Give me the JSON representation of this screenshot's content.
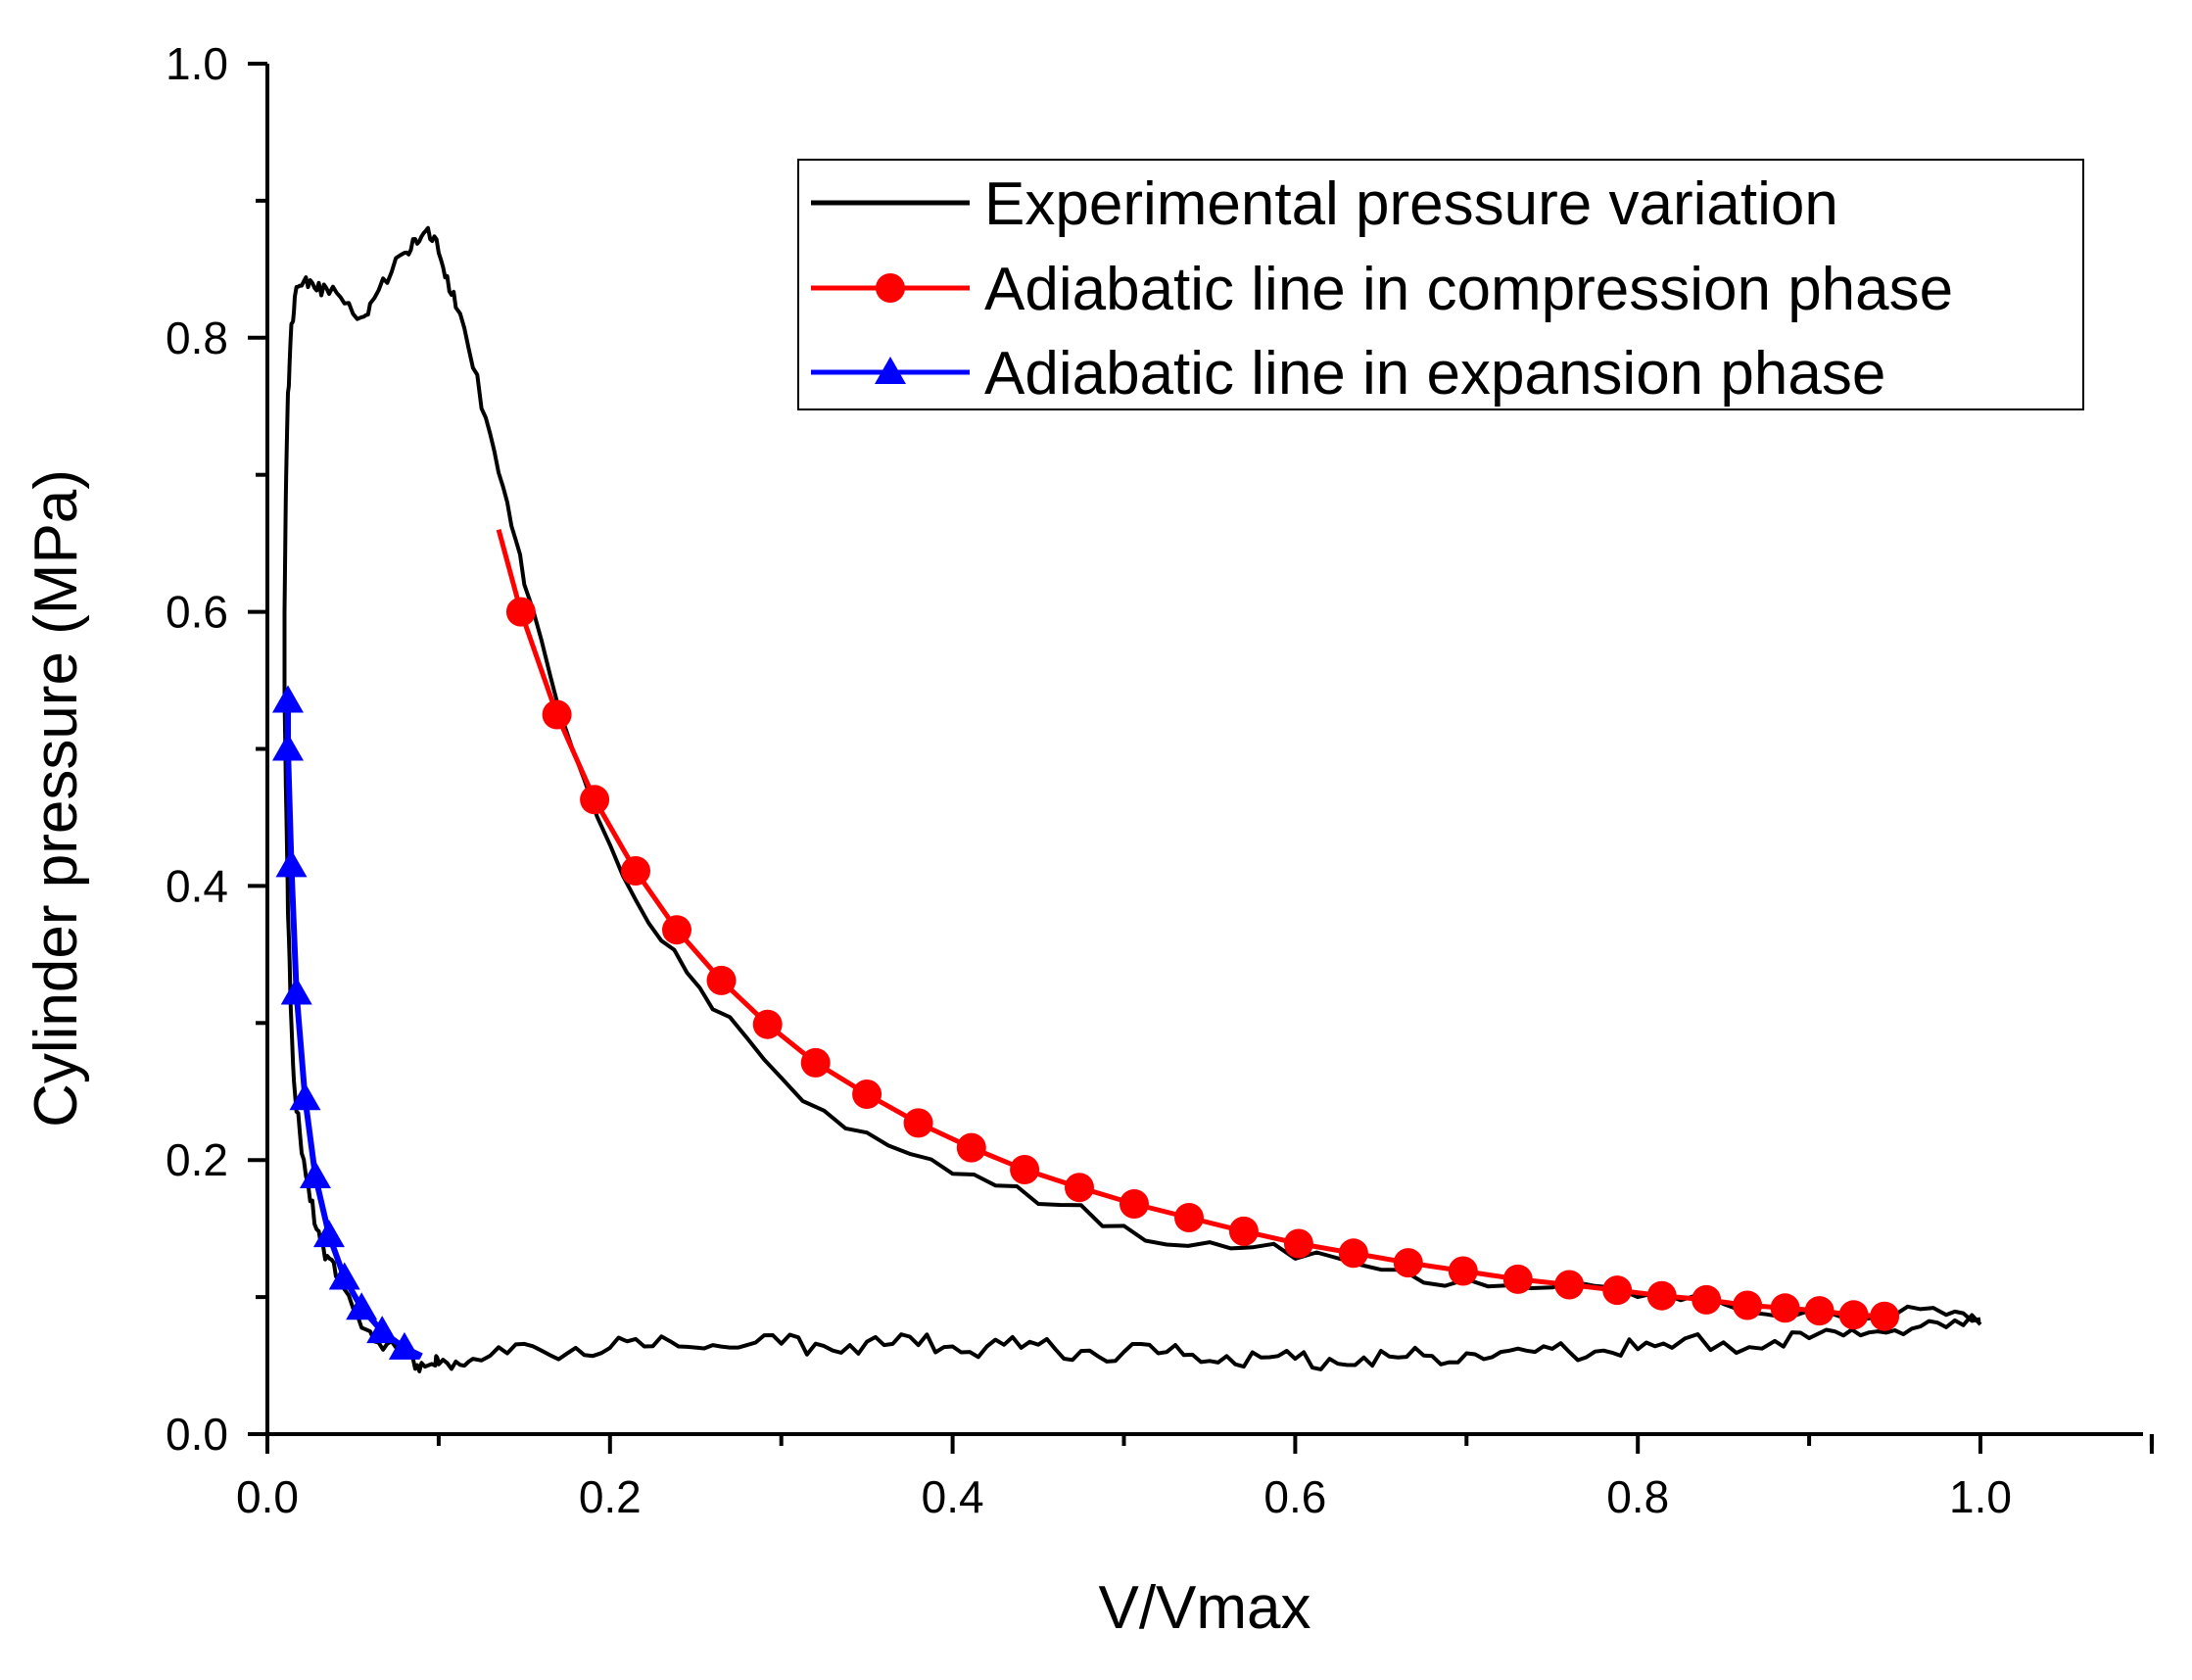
{
  "chart_data": {
    "type": "line",
    "title": "",
    "xlabel": "V/Vmax",
    "ylabel": "Cylinder pressure (MPa)",
    "xlim": [
      0.0,
      1.1
    ],
    "ylim": [
      0.0,
      1.0
    ],
    "xticks": [
      0.0,
      0.2,
      0.4,
      0.6,
      0.8,
      1.0
    ],
    "xtick_labels": [
      "0.0",
      "0.2",
      "0.4",
      "0.6",
      "0.8",
      "1.0"
    ],
    "yticks": [
      0.0,
      0.2,
      0.4,
      0.6,
      0.8,
      1.0
    ],
    "ytick_labels": [
      "0.0",
      "0.2",
      "0.4",
      "0.6",
      "0.8",
      "1.0"
    ],
    "grid": false,
    "legend_position": "top-right",
    "series": [
      {
        "name": "Experimental pressure variation",
        "color": "#000000",
        "marker": "none",
        "x": [
          1.0,
          0.98,
          0.96,
          0.94,
          0.92,
          0.9,
          0.88,
          0.85,
          0.82,
          0.8,
          0.78,
          0.76,
          0.74,
          0.72,
          0.7,
          0.68,
          0.66,
          0.64,
          0.62,
          0.6,
          0.58,
          0.56,
          0.54,
          0.52,
          0.5,
          0.48,
          0.46,
          0.44,
          0.42,
          0.4,
          0.38,
          0.36,
          0.34,
          0.32,
          0.3,
          0.28,
          0.26,
          0.24,
          0.22,
          0.2,
          0.18,
          0.16,
          0.14,
          0.12,
          0.11,
          0.1,
          0.098,
          0.09,
          0.085,
          0.08,
          0.07,
          0.06,
          0.05,
          0.04,
          0.035,
          0.03,
          0.025,
          0.02,
          0.016,
          0.014,
          0.012,
          0.011,
          0.01,
          0.01,
          0.011,
          0.012,
          0.014,
          0.016,
          0.02,
          0.025,
          0.03,
          0.036,
          0.045,
          0.055,
          0.06,
          0.07,
          0.08,
          0.085,
          0.09,
          0.095,
          0.1,
          0.105,
          0.11,
          0.12,
          0.13,
          0.14,
          0.15,
          0.17,
          0.2,
          0.23,
          0.26,
          0.3,
          0.35,
          0.4,
          0.45,
          0.5,
          0.55,
          0.6,
          0.65,
          0.7,
          0.75,
          0.8,
          0.85,
          0.9,
          0.95,
          0.98,
          1.0
        ],
        "y": [
          0.08,
          0.078,
          0.077,
          0.075,
          0.072,
          0.07,
          0.068,
          0.067,
          0.063,
          0.062,
          0.061,
          0.06,
          0.06,
          0.06,
          0.059,
          0.057,
          0.056,
          0.056,
          0.055,
          0.055,
          0.056,
          0.057,
          0.058,
          0.059,
          0.06,
          0.061,
          0.062,
          0.063,
          0.064,
          0.064,
          0.065,
          0.065,
          0.065,
          0.066,
          0.066,
          0.065,
          0.065,
          0.064,
          0.064,
          0.063,
          0.063,
          0.061,
          0.059,
          0.055,
          0.053,
          0.051,
          0.05,
          0.052,
          0.055,
          0.058,
          0.066,
          0.075,
          0.092,
          0.115,
          0.13,
          0.148,
          0.17,
          0.205,
          0.25,
          0.3,
          0.38,
          0.46,
          0.54,
          0.6,
          0.7,
          0.76,
          0.81,
          0.83,
          0.838,
          0.842,
          0.84,
          0.832,
          0.825,
          0.815,
          0.825,
          0.84,
          0.862,
          0.872,
          0.874,
          0.872,
          0.862,
          0.845,
          0.822,
          0.778,
          0.73,
          0.68,
          0.62,
          0.53,
          0.43,
          0.36,
          0.31,
          0.26,
          0.22,
          0.19,
          0.168,
          0.152,
          0.14,
          0.128,
          0.12,
          0.113,
          0.107,
          0.1,
          0.095,
          0.09,
          0.087,
          0.087,
          0.084
        ]
      },
      {
        "name": "Adiabatic line in compression phase",
        "color": "#ff0000",
        "marker": "circle",
        "x": [
          0.148,
          0.169,
          0.191,
          0.215,
          0.239,
          0.265,
          0.292,
          0.32,
          0.35,
          0.38,
          0.411,
          0.442,
          0.474,
          0.506,
          0.538,
          0.57,
          0.602,
          0.634,
          0.666,
          0.698,
          0.73,
          0.76,
          0.788,
          0.814,
          0.84,
          0.864,
          0.886,
          0.906,
          0.926,
          0.944
        ],
        "y": [
          0.6,
          0.525,
          0.463,
          0.411,
          0.368,
          0.331,
          0.299,
          0.271,
          0.248,
          0.227,
          0.209,
          0.193,
          0.18,
          0.168,
          0.158,
          0.148,
          0.139,
          0.132,
          0.125,
          0.119,
          0.113,
          0.109,
          0.105,
          0.101,
          0.098,
          0.094,
          0.092,
          0.09,
          0.087,
          0.086
        ],
        "line_x_start": 0.135,
        "line_y_start": 0.66
      },
      {
        "name": "Adiabatic line in expansion phase",
        "color": "#0000ff",
        "marker": "triangle",
        "x": [
          0.012,
          0.012,
          0.014,
          0.017,
          0.022,
          0.028,
          0.036,
          0.045,
          0.055,
          0.067,
          0.08
        ],
        "y": [
          0.535,
          0.5,
          0.415,
          0.322,
          0.245,
          0.188,
          0.145,
          0.114,
          0.092,
          0.075,
          0.063
        ],
        "line_x_end": 0.09,
        "line_y_end": 0.057
      }
    ]
  }
}
